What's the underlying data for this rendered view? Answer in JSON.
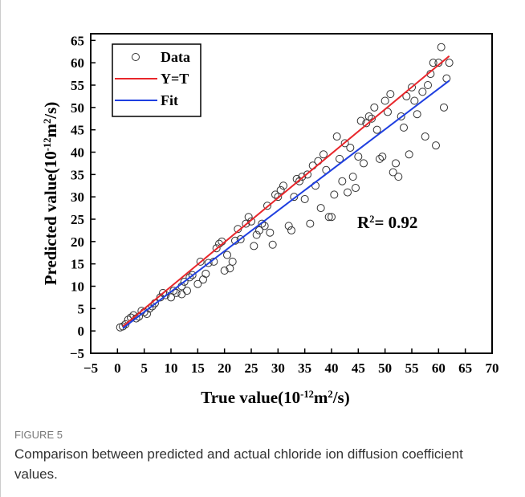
{
  "chart_data": {
    "type": "scatter",
    "xlabel_parts": [
      {
        "text": "True value(10"
      },
      {
        "text": "-12",
        "sup": true
      },
      {
        "text": "m"
      },
      {
        "text": "2",
        "sup": true
      },
      {
        "text": "/s)"
      }
    ],
    "ylabel_parts": [
      {
        "text": "Predicted value(10"
      },
      {
        "text": "-12",
        "sup": true
      },
      {
        "text": "m"
      },
      {
        "text": "2",
        "sup": true
      },
      {
        "text": "/s)"
      }
    ],
    "annotation_parts": [
      {
        "text": "R"
      },
      {
        "text": "2",
        "sup": true
      },
      {
        "text": "= 0.92"
      }
    ],
    "xlim": [
      -5,
      70
    ],
    "ylim": [
      -5,
      66.5
    ],
    "xticks": [
      {
        "value": -5,
        "label": "−5"
      },
      0,
      5,
      10,
      15,
      20,
      25,
      30,
      35,
      40,
      45,
      50,
      55,
      60,
      65,
      70
    ],
    "yticks": [
      {
        "value": -5,
        "label": "−5"
      },
      0,
      5,
      10,
      15,
      20,
      25,
      30,
      35,
      40,
      45,
      50,
      55,
      60,
      65
    ],
    "legend": "upper left",
    "series": [
      {
        "name": "Data",
        "color": "#333333",
        "marker": "open-circle",
        "x": [
          0.5,
          1,
          1.5,
          2,
          2.5,
          3,
          3.5,
          4,
          4.5,
          5,
          5.5,
          6,
          6.5,
          7,
          8,
          8.5,
          9,
          10,
          10.5,
          11,
          12,
          12.5,
          13,
          12,
          13.5,
          14,
          15,
          15.5,
          16,
          16.5,
          17,
          18,
          18.5,
          19,
          19.5,
          20,
          20.5,
          21,
          21.5,
          22,
          22.5,
          23,
          24,
          24.5,
          25,
          25.5,
          26,
          26.5,
          27,
          27.5,
          28,
          28.5,
          29,
          29.5,
          30,
          30.5,
          31,
          32,
          32.5,
          33,
          33.5,
          34,
          34.5,
          35,
          35.5,
          36,
          36.5,
          37,
          37.5,
          38,
          38.5,
          39,
          39.5,
          40,
          40.5,
          41,
          41.5,
          42,
          42.5,
          43,
          43.5,
          44,
          44.5,
          45,
          45.5,
          46,
          46.5,
          47,
          47.5,
          48,
          48.5,
          49,
          49.5,
          50,
          50.5,
          51,
          51.5,
          52,
          52.5,
          53,
          53.5,
          54,
          54.5,
          55,
          55.5,
          56,
          57,
          57.5,
          58,
          58.5,
          59,
          59.5,
          60,
          60.5,
          61,
          61.5,
          62
        ],
        "y": [
          0.8,
          1,
          1.5,
          2.5,
          3,
          3.5,
          2.8,
          3.2,
          4.5,
          4.2,
          3.8,
          5,
          5.5,
          6.2,
          7.5,
          8.5,
          8,
          7.5,
          9,
          8.5,
          10,
          11,
          9,
          8.2,
          12,
          12.5,
          10.5,
          15.5,
          11.5,
          12.8,
          15.2,
          15.5,
          18.5,
          19.5,
          20,
          13.5,
          17,
          14,
          15.5,
          20.2,
          22.8,
          20.5,
          24,
          25.5,
          24.5,
          19,
          21.5,
          22.5,
          24,
          23.5,
          28,
          22,
          19.3,
          30.5,
          30,
          31.5,
          32.5,
          23.5,
          22.5,
          30,
          34,
          33.5,
          34.5,
          29.5,
          35,
          24,
          37,
          32.5,
          38,
          27.5,
          39.5,
          36,
          25.5,
          25.5,
          30.5,
          43.5,
          38.5,
          33.5,
          42,
          31,
          41,
          34.5,
          32,
          39,
          47,
          37.5,
          46.5,
          48,
          47.5,
          50,
          45,
          38.5,
          39,
          51.5,
          49,
          53,
          35.5,
          37.5,
          34.5,
          48,
          45.5,
          52.5,
          39.5,
          54.5,
          51.5,
          48.5,
          53.5,
          43.5,
          55,
          57.5,
          60,
          41.5,
          60,
          63.5,
          50,
          56.5,
          60
        ]
      },
      {
        "name": "Y=T",
        "color": "#e8262b",
        "marker": "line",
        "x": [
          1,
          62
        ],
        "y": [
          1,
          61.5
        ]
      },
      {
        "name": "Fit",
        "color": "#1f3fe0",
        "marker": "line",
        "x": [
          1,
          62
        ],
        "y": [
          0.6,
          56
        ]
      }
    ],
    "caption_label": "FIGURE 5",
    "caption": "Comparison between predicted and actual chloride ion diffusion coefficient values."
  }
}
